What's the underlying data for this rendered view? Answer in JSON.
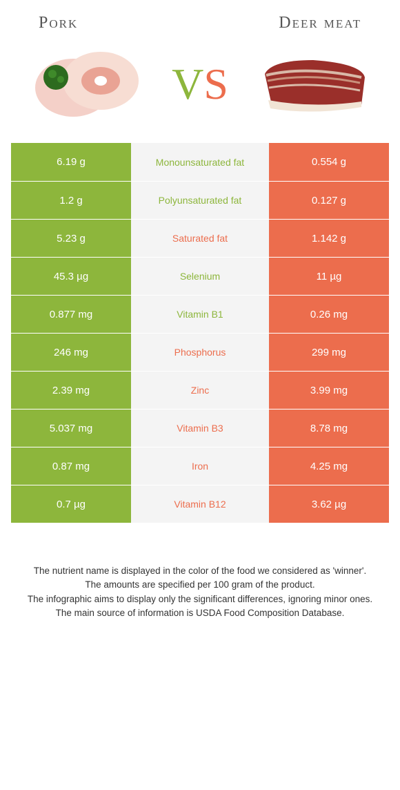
{
  "header": {
    "left_title": "Pork",
    "right_title": "Deer meat",
    "vs_v": "V",
    "vs_s": "S"
  },
  "colors": {
    "pork": "#8db63c",
    "deer": "#ec6d4d",
    "mid_bg": "#f4f4f4",
    "text": "#333333"
  },
  "rows": [
    {
      "left": "6.19 g",
      "label": "Monounsaturated fat",
      "right": "0.554 g",
      "winner": "pork"
    },
    {
      "left": "1.2 g",
      "label": "Polyunsaturated fat",
      "right": "0.127 g",
      "winner": "pork"
    },
    {
      "left": "5.23 g",
      "label": "Saturated fat",
      "right": "1.142 g",
      "winner": "deer"
    },
    {
      "left": "45.3 µg",
      "label": "Selenium",
      "right": "11 µg",
      "winner": "pork"
    },
    {
      "left": "0.877 mg",
      "label": "Vitamin B1",
      "right": "0.26 mg",
      "winner": "pork"
    },
    {
      "left": "246 mg",
      "label": "Phosphorus",
      "right": "299 mg",
      "winner": "deer"
    },
    {
      "left": "2.39 mg",
      "label": "Zinc",
      "right": "3.99 mg",
      "winner": "deer"
    },
    {
      "left": "5.037 mg",
      "label": "Vitamin B3",
      "right": "8.78 mg",
      "winner": "deer"
    },
    {
      "left": "0.87 mg",
      "label": "Iron",
      "right": "4.25 mg",
      "winner": "deer"
    },
    {
      "left": "0.7 µg",
      "label": "Vitamin B12",
      "right": "3.62 µg",
      "winner": "deer"
    }
  ],
  "footnotes": {
    "l1": "The nutrient name is displayed in the color of the food we considered as 'winner'.",
    "l2": "The amounts are specified per 100 gram of the product.",
    "l3": "The infographic aims to display only the significant differences, ignoring minor ones.",
    "l4": "The main source of information is USDA Food Composition Database."
  }
}
